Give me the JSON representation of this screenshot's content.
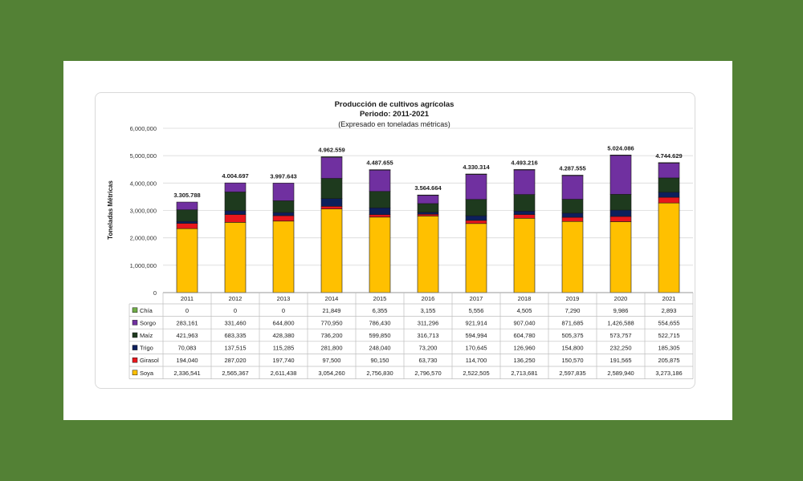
{
  "chart_data": {
    "type": "bar",
    "stacked": true,
    "title": "Producción de cultivos agrícolas",
    "subtitle": "Periodo: 2011-2021",
    "subtitle2": "(Expresado en toneladas métricas)",
    "ylabel": "Toneladas Métricas",
    "xlabel": "",
    "ylim": [
      0,
      6000000
    ],
    "y_ticks": [
      "0",
      "1,000,000",
      "2,000,000",
      "3,000,000",
      "4,000,000",
      "5,000,000",
      "6,000,000"
    ],
    "grid": true,
    "legend": "data-table-left",
    "categories": [
      "2011",
      "2012",
      "2013",
      "2014",
      "2015",
      "2016",
      "2017",
      "2018",
      "2019",
      "2020",
      "2021"
    ],
    "totals": [
      "3.305.788",
      "4.004.697",
      "3.997.643",
      "4.962.559",
      "4.487.655",
      "3.564.664",
      "4.330.314",
      "4.493.216",
      "4.287.555",
      "5.024.086",
      "4.744.629"
    ],
    "series": [
      {
        "name": "Soya",
        "color": "#ffc000",
        "values": [
          2336541,
          2565367,
          2611438,
          3054260,
          2756830,
          2796570,
          2522505,
          2713681,
          2597835,
          2589940,
          3273186
        ],
        "labels": [
          "2,336,541",
          "2,565,367",
          "2,611,438",
          "3,054,260",
          "2,756,830",
          "2,796,570",
          "2,522,505",
          "2,713,681",
          "2,597,835",
          "2,589,940",
          "3,273,186"
        ]
      },
      {
        "name": "Girasol",
        "color": "#e8161c",
        "values": [
          194040,
          287020,
          197740,
          97500,
          90150,
          63730,
          114700,
          136250,
          150570,
          191565,
          205875
        ],
        "labels": [
          "194,040",
          "287,020",
          "197,740",
          "97,500",
          "90,150",
          "63,730",
          "114,700",
          "136,250",
          "150,570",
          "191,565",
          "205,875"
        ]
      },
      {
        "name": "Trigo",
        "color": "#0d1f5c",
        "values": [
          70083,
          137515,
          115285,
          281800,
          248040,
          73200,
          170645,
          126960,
          154800,
          232250,
          185305
        ],
        "labels": [
          "70,083",
          "137,515",
          "115,285",
          "281,800",
          "248,040",
          "73,200",
          "170,645",
          "126,960",
          "154,800",
          "232,250",
          "185,305"
        ]
      },
      {
        "name": "Maíz",
        "color": "#1e3a1e",
        "values": [
          421963,
          683335,
          428380,
          736200,
          599850,
          316713,
          594994,
          604780,
          505375,
          573757,
          522715
        ],
        "labels": [
          "421,963",
          "683,335",
          "428,380",
          "736,200",
          "599,850",
          "316,713",
          "594,994",
          "604,780",
          "505,375",
          "573,757",
          "522,715"
        ]
      },
      {
        "name": "Sorgo",
        "color": "#7030a0",
        "values": [
          283161,
          331460,
          644800,
          770950,
          786430,
          311296,
          921914,
          907040,
          871685,
          1426588,
          554655
        ],
        "labels": [
          "283,161",
          "331,460",
          "644,800",
          "770,950",
          "786,430",
          "311,296",
          "921,914",
          "907,040",
          "871,685",
          "1,426,588",
          "554,655"
        ]
      },
      {
        "name": "Chía",
        "color": "#70ad47",
        "values": [
          0,
          0,
          0,
          21849,
          6355,
          3155,
          5556,
          4505,
          7290,
          9986,
          2893
        ],
        "labels": [
          "0",
          "0",
          "0",
          "21,849",
          "6,355",
          "3,155",
          "5,556",
          "4,505",
          "7,290",
          "9,986",
          "2,893"
        ]
      }
    ]
  }
}
